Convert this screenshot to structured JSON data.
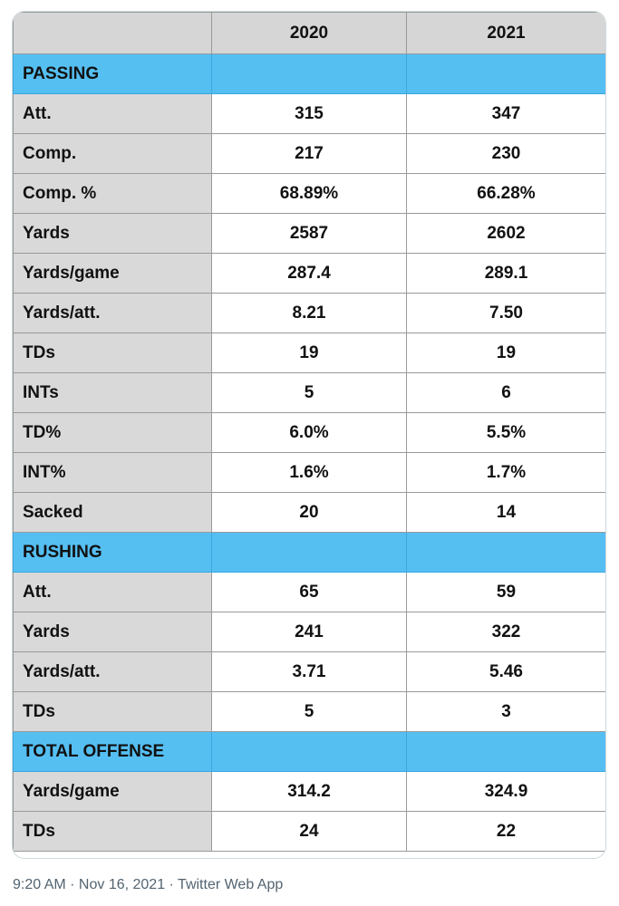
{
  "table": {
    "columns": [
      "",
      "2020",
      "2021"
    ],
    "sections": [
      {
        "title": "PASSING",
        "rows": [
          {
            "label": "Att.",
            "v2020": "315",
            "v2021": "347"
          },
          {
            "label": "Comp.",
            "v2020": "217",
            "v2021": "230"
          },
          {
            "label": "Comp. %",
            "v2020": "68.89%",
            "v2021": "66.28%"
          },
          {
            "label": "Yards",
            "v2020": "2587",
            "v2021": "2602"
          },
          {
            "label": "Yards/game",
            "v2020": "287.4",
            "v2021": "289.1"
          },
          {
            "label": "Yards/att.",
            "v2020": "8.21",
            "v2021": "7.50"
          },
          {
            "label": "TDs",
            "v2020": "19",
            "v2021": "19"
          },
          {
            "label": "INTs",
            "v2020": "5",
            "v2021": "6"
          },
          {
            "label": "TD%",
            "v2020": "6.0%",
            "v2021": "5.5%"
          },
          {
            "label": "INT%",
            "v2020": "1.6%",
            "v2021": "1.7%"
          },
          {
            "label": "Sacked",
            "v2020": "20",
            "v2021": "14"
          }
        ]
      },
      {
        "title": "RUSHING",
        "rows": [
          {
            "label": "Att.",
            "v2020": "65",
            "v2021": "59"
          },
          {
            "label": "Yards",
            "v2020": "241",
            "v2021": "322"
          },
          {
            "label": "Yards/att.",
            "v2020": "3.71",
            "v2021": "5.46"
          },
          {
            "label": "TDs",
            "v2020": "5",
            "v2021": "3"
          }
        ]
      },
      {
        "title": "TOTAL OFFENSE",
        "rows": [
          {
            "label": "Yards/game",
            "v2020": "314.2",
            "v2021": "324.9"
          },
          {
            "label": "TDs",
            "v2020": "24",
            "v2021": "22"
          }
        ]
      }
    ]
  },
  "colors": {
    "section_bg": "#55bff2",
    "header_bg": "#d6d6d6",
    "label_bg": "#d9d9d9"
  },
  "tweet_meta": {
    "time": "9:20 AM",
    "sep1": " · ",
    "date": "Nov 16, 2021",
    "sep2": " · ",
    "source": "Twitter Web App"
  }
}
